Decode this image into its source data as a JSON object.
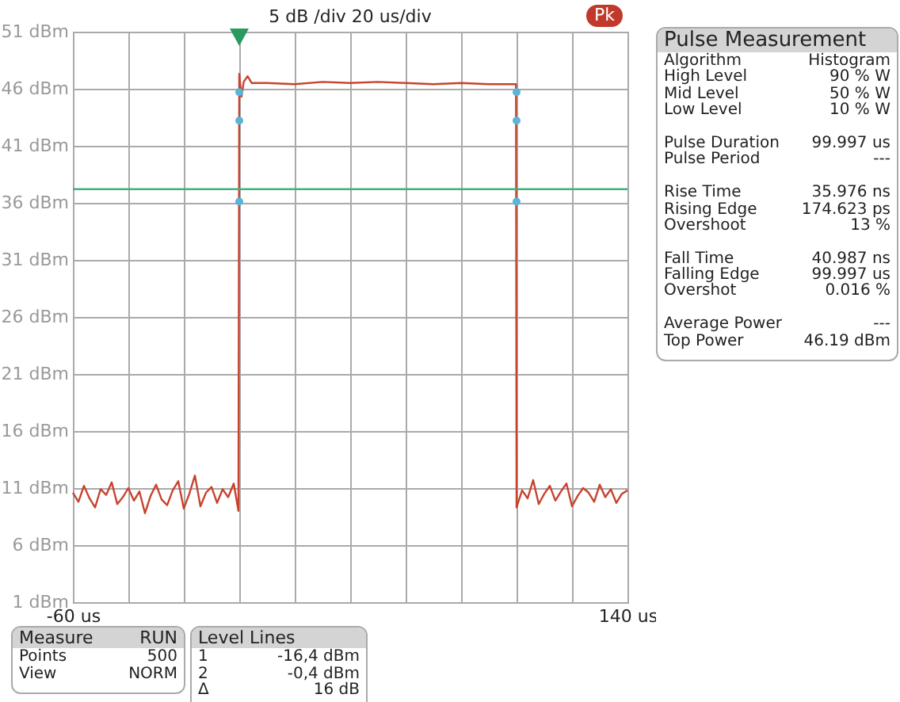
{
  "chart_data": [
    {
      "type": "line",
      "subtitle": "5 dB /div  20 us/div",
      "annotations": [
        "Pk"
      ],
      "xlim": [
        -60,
        140
      ],
      "xticks": [
        {
          "value": -60,
          "label": "-60 us"
        },
        {
          "value": -40,
          "label": null
        },
        {
          "value": -20,
          "label": null
        },
        {
          "value": 0,
          "label": null
        },
        {
          "value": 20,
          "label": null
        },
        {
          "value": 40,
          "label": null
        },
        {
          "value": 60,
          "label": null
        },
        {
          "value": 80,
          "label": null
        },
        {
          "value": 100,
          "label": null
        },
        {
          "value": 120,
          "label": null
        },
        {
          "value": 140,
          "label": "140 us"
        }
      ],
      "ylim": [
        1,
        51
      ],
      "yticks": [
        {
          "value": 1,
          "label": "1 dBm"
        },
        {
          "value": 6,
          "label": "6 dBm"
        },
        {
          "value": 11,
          "label": "11 dBm"
        },
        {
          "value": 16,
          "label": "16 dBm"
        },
        {
          "value": 21,
          "label": "21 dBm"
        },
        {
          "value": 26,
          "label": "26 dBm"
        },
        {
          "value": 31,
          "label": "31 dBm"
        },
        {
          "value": 36,
          "label": "36 dBm"
        },
        {
          "value": 41,
          "label": "41 dBm"
        },
        {
          "value": 46,
          "label": "46 dBm"
        },
        {
          "value": 51,
          "label": "51 dBm"
        }
      ],
      "grid": true,
      "ref_lines": [
        {
          "axis": "y",
          "value": 37.2,
          "color": "#3fb37f"
        }
      ],
      "series": [
        {
          "type": "line",
          "color": "#c8432e",
          "x": [
            -60,
            -58,
            -56,
            -54,
            -52,
            -50,
            -48,
            -46,
            -44,
            -42,
            -40,
            -38,
            -36,
            -34,
            -32,
            -30,
            -28,
            -26,
            -24,
            -22,
            -20,
            -18,
            -16,
            -14,
            -12,
            -10,
            -8,
            -6,
            -4,
            -2,
            -0.3,
            0,
            0.8,
            1.6,
            3,
            4.5,
            10,
            20,
            30,
            40,
            50,
            60,
            70,
            80,
            90,
            99.8,
            100,
            102,
            104,
            106,
            108,
            110,
            112,
            114,
            116,
            118,
            120,
            122,
            124,
            126,
            128,
            130,
            132,
            134,
            136,
            138,
            140
          ],
          "values": [
            10.6,
            9.8,
            11.2,
            10.1,
            9.3,
            10.9,
            10.4,
            11.5,
            9.6,
            10.2,
            11.0,
            9.9,
            10.7,
            8.8,
            10.3,
            11.3,
            10.0,
            9.5,
            10.8,
            11.6,
            9.2,
            10.5,
            12.1,
            9.4,
            10.6,
            11.1,
            9.7,
            10.9,
            10.2,
            11.4,
            9.0,
            47.3,
            45.3,
            46.6,
            47.1,
            46.5,
            46.5,
            46.4,
            46.6,
            46.5,
            46.6,
            46.5,
            46.4,
            46.5,
            46.4,
            46.4,
            9.3,
            10.8,
            10.1,
            11.7,
            9.6,
            10.5,
            11.2,
            9.9,
            10.7,
            11.4,
            9.4,
            10.3,
            11.0,
            10.6,
            9.8,
            11.3,
            10.2,
            10.9,
            9.7,
            10.5,
            10.8
          ]
        },
        {
          "type": "scatter",
          "color": "#5ab4d6",
          "x": [
            0,
            0,
            0,
            100,
            100,
            100
          ],
          "values": [
            45.7,
            43.2,
            36.1,
            45.7,
            43.2,
            36.1
          ]
        }
      ]
    },
    {
      "type": "other",
      "title": "Pulse Measurement",
      "categories": [
        "Algorithm",
        "High Level",
        "Mid Level",
        "Low Level",
        null,
        "Pulse Duration",
        "Pulse Period",
        null,
        "Rise Time",
        "Rising Edge",
        "Overshoot",
        null,
        "Fall Time",
        "Falling Edge",
        "Overshot",
        null,
        "Average Power",
        "Top Power"
      ],
      "value_labels": [
        "Histogram",
        "90 % W",
        "50 % W",
        "10 % W",
        null,
        "99.997 us",
        "---",
        null,
        "35.976 ns",
        "174.623 ps",
        "13 %",
        null,
        "40.987 ns",
        "99.997 us",
        "0.016 %",
        null,
        "---",
        "46.19 dBm"
      ]
    },
    {
      "type": "other",
      "title": "Measure",
      "subtitle": "RUN",
      "categories": [
        "Points",
        "View"
      ],
      "value_labels": [
        "500",
        "NORM"
      ]
    },
    {
      "type": "other",
      "title": "Level Lines",
      "categories": [
        "1",
        "2",
        "Δ"
      ],
      "value_labels": [
        "-16,4 dBm",
        "-0,4 dBm",
        "16 dB"
      ]
    }
  ]
}
